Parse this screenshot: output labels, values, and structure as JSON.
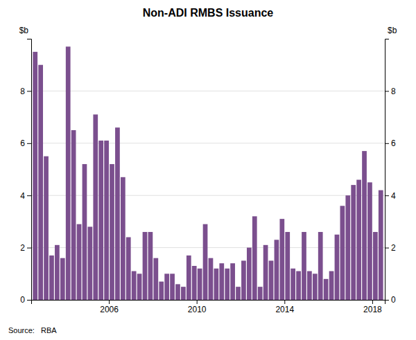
{
  "chart_data": {
    "type": "bar",
    "title": "Non-ADI RMBS Issuance",
    "ylabel": "$b",
    "y2label": "$b",
    "source": "Source:   RBA",
    "color": "#7B4F8E",
    "grid": true,
    "ylim": [
      0,
      10
    ],
    "yticks": [
      0,
      2,
      4,
      6,
      8
    ],
    "y2lim": [
      0,
      10
    ],
    "y2ticks": [
      0,
      2,
      4,
      6,
      8
    ],
    "categories": [
      null,
      null,
      null,
      null,
      null,
      null,
      null,
      null,
      null,
      null,
      null,
      null,
      null,
      "2006",
      null,
      null,
      null,
      null,
      null,
      null,
      null,
      null,
      null,
      null,
      null,
      null,
      null,
      null,
      null,
      "2010",
      null,
      null,
      null,
      null,
      null,
      null,
      null,
      null,
      null,
      null,
      null,
      null,
      null,
      null,
      null,
      "2014",
      null,
      null,
      null,
      null,
      null,
      null,
      null,
      null,
      null,
      null,
      null,
      null,
      null,
      null,
      null,
      "2018",
      null,
      null
    ],
    "values": [
      9.5,
      9.0,
      5.5,
      1.7,
      2.1,
      1.6,
      9.7,
      6.5,
      2.9,
      5.2,
      2.8,
      7.1,
      6.1,
      6.1,
      5.2,
      6.6,
      4.7,
      2.4,
      1.1,
      1.0,
      2.6,
      2.6,
      1.6,
      0.7,
      1.0,
      1.0,
      0.6,
      0.5,
      1.7,
      1.3,
      1.2,
      2.9,
      1.6,
      1.2,
      1.4,
      1.2,
      1.4,
      0.5,
      1.5,
      2.0,
      3.2,
      0.5,
      2.1,
      1.5,
      2.3,
      3.1,
      2.6,
      1.2,
      1.1,
      2.6,
      1.1,
      1.0,
      2.6,
      0.8,
      1.1,
      2.5,
      3.6,
      4.0,
      4.4,
      4.6,
      5.7,
      4.5,
      2.6,
      4.2
    ]
  }
}
